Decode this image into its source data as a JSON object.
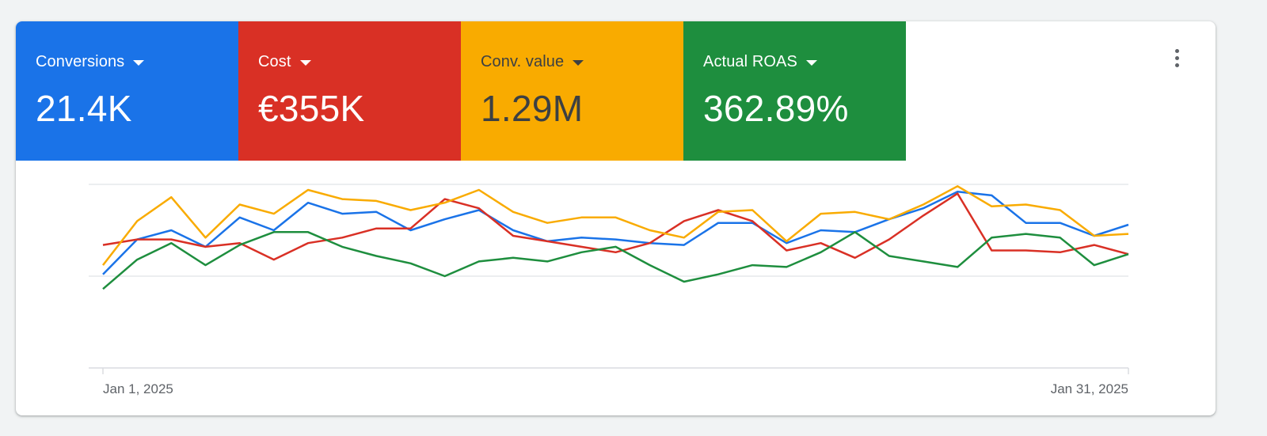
{
  "scorecards": [
    {
      "label": "Conversions",
      "value": "21.4K",
      "bg": "#1a73e8",
      "fg": "#ffffff"
    },
    {
      "label": "Cost",
      "value": "€355K",
      "bg": "#d93025",
      "fg": "#ffffff"
    },
    {
      "label": "Conv. value",
      "value": "1.29M",
      "bg": "#f9ab00",
      "fg": "#3c4043"
    },
    {
      "label": "Actual ROAS",
      "value": "362.89%",
      "bg": "#1e8e3e",
      "fg": "#ffffff"
    }
  ],
  "menu": {
    "icon": "more-vert-icon"
  },
  "chart_data": {
    "type": "line",
    "x": [
      "Jan 1, 2025",
      "Jan 2, 2025",
      "Jan 3, 2025",
      "Jan 4, 2025",
      "Jan 5, 2025",
      "Jan 6, 2025",
      "Jan 7, 2025",
      "Jan 8, 2025",
      "Jan 9, 2025",
      "Jan 10, 2025",
      "Jan 11, 2025",
      "Jan 12, 2025",
      "Jan 13, 2025",
      "Jan 14, 2025",
      "Jan 15, 2025",
      "Jan 16, 2025",
      "Jan 17, 2025",
      "Jan 18, 2025",
      "Jan 19, 2025",
      "Jan 20, 2025",
      "Jan 21, 2025",
      "Jan 22, 2025",
      "Jan 23, 2025",
      "Jan 24, 2025",
      "Jan 25, 2025",
      "Jan 26, 2025",
      "Jan 27, 2025",
      "Jan 28, 2025",
      "Jan 29, 2025",
      "Jan 30, 2025",
      "Jan 31, 2025"
    ],
    "x_tick_labels": [
      "Jan 1, 2025",
      "Jan 31, 2025"
    ],
    "ylim": [
      0,
      1
    ],
    "grid": true,
    "series": [
      {
        "metric": "Conversions",
        "color": "#1a73e8",
        "values": [
          0.51,
          0.7,
          0.75,
          0.66,
          0.82,
          0.75,
          0.9,
          0.84,
          0.85,
          0.75,
          0.81,
          0.86,
          0.75,
          0.69,
          0.71,
          0.7,
          0.68,
          0.67,
          0.79,
          0.79,
          0.68,
          0.75,
          0.74,
          0.81,
          0.87,
          0.96,
          0.94,
          0.79,
          0.79,
          0.72,
          0.78
        ]
      },
      {
        "metric": "Cost",
        "color": "#d93025",
        "values": [
          0.67,
          0.7,
          0.7,
          0.66,
          0.68,
          0.59,
          0.68,
          0.71,
          0.76,
          0.76,
          0.92,
          0.87,
          0.72,
          0.69,
          0.66,
          0.63,
          0.68,
          0.8,
          0.86,
          0.8,
          0.64,
          0.68,
          0.6,
          0.7,
          0.83,
          0.95,
          0.64,
          0.64,
          0.63,
          0.67,
          0.62
        ]
      },
      {
        "metric": "Conv. value",
        "color": "#f9ab00",
        "values": [
          0.56,
          0.8,
          0.93,
          0.71,
          0.89,
          0.84,
          0.97,
          0.92,
          0.91,
          0.86,
          0.9,
          0.97,
          0.85,
          0.79,
          0.82,
          0.82,
          0.75,
          0.71,
          0.85,
          0.86,
          0.69,
          0.84,
          0.85,
          0.81,
          0.89,
          0.99,
          0.88,
          0.89,
          0.86,
          0.72,
          0.73
        ]
      },
      {
        "metric": "Actual ROAS",
        "color": "#1e8e3e",
        "values": [
          0.43,
          0.59,
          0.68,
          0.56,
          0.67,
          0.74,
          0.74,
          0.66,
          0.61,
          0.57,
          0.5,
          0.58,
          0.6,
          0.58,
          0.63,
          0.66,
          0.56,
          0.47,
          0.51,
          0.56,
          0.55,
          0.63,
          0.74,
          0.61,
          0.58,
          0.55,
          0.71,
          0.73,
          0.71,
          0.56,
          0.62
        ]
      }
    ]
  }
}
